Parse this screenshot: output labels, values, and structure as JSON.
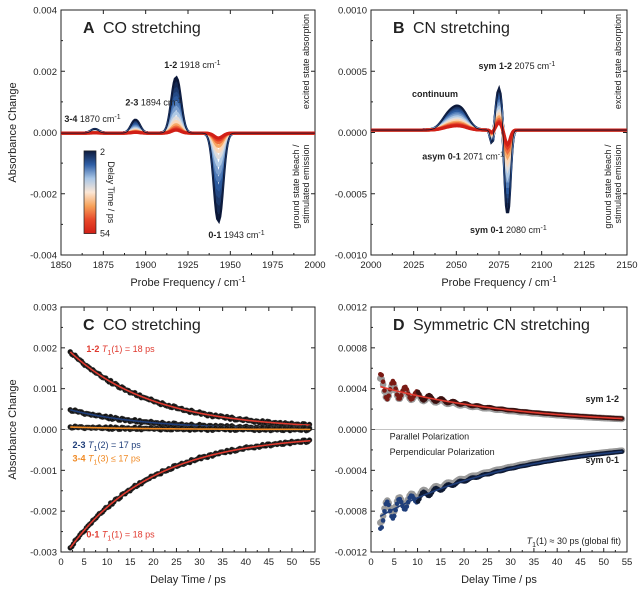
{
  "chart_data": [
    {
      "id": "A",
      "type": "line",
      "panel_letter": "A",
      "title": "CO stretching",
      "xlabel": "Probe Frequency / cm",
      "xlabel_sup": "-1",
      "ylabel": "Absorbance Change",
      "xlim": [
        1850,
        2000
      ],
      "ylim": [
        -0.004,
        0.004
      ],
      "xticks": [
        "1850",
        "1875",
        "1900",
        "1925",
        "1950",
        "1975",
        "2000"
      ],
      "yticks": [
        "-0.004",
        "-0.002",
        "0.000",
        "0.002",
        "0.004"
      ],
      "side_top": "excited state absorption",
      "side_bottom_1": "ground state bleach /",
      "side_bottom_2": "stimulated emission",
      "colorbar": {
        "label": "Delay Time / ps",
        "min_label": "2",
        "max_label": "54"
      },
      "spectra": {
        "delays": [
          2,
          4,
          6,
          8,
          10,
          13,
          16,
          20,
          25,
          30,
          36,
          42,
          48,
          54
        ],
        "decay_ps": 18,
        "baseline_offset": -2e-05,
        "peaks": [
          {
            "center": 1918,
            "amp": 0.0018,
            "width": 2.6
          },
          {
            "center": 1894,
            "amp": 0.00042,
            "width": 2.4
          },
          {
            "center": 1870,
            "amp": 0.00012,
            "width": 2.2
          },
          {
            "center": 1943,
            "amp": -0.00285,
            "width": 2.5
          }
        ]
      },
      "annotations": [
        {
          "bold": "1-2",
          "text": "1918 cm",
          "sup": "-1"
        },
        {
          "bold": "2-3",
          "text": "1894 cm",
          "sup": "-1"
        },
        {
          "bold": "3-4",
          "text": "1870 cm",
          "sup": "-1"
        },
        {
          "bold": "0-1",
          "text": "1943 cm",
          "sup": "-1"
        }
      ]
    },
    {
      "id": "B",
      "type": "line",
      "panel_letter": "B",
      "title": "CN stretching",
      "xlabel": "Probe Frequency / cm",
      "xlabel_sup": "-1",
      "ylabel": "",
      "xlim": [
        2000,
        2150
      ],
      "ylim": [
        -0.001,
        0.001
      ],
      "xticks": [
        "2000",
        "2025",
        "2050",
        "2075",
        "2100",
        "2125",
        "2150"
      ],
      "yticks": [
        "-0.0010",
        "-0.0005",
        "0.0000",
        "0.0005",
        "0.0010"
      ],
      "side_top": "excited state absorption",
      "side_bottom_1": "ground state bleach /",
      "side_bottom_2": "stimulated emission",
      "spectra": {
        "delays": [
          2,
          4,
          6,
          8,
          10,
          13,
          16,
          20,
          25,
          30,
          36,
          42,
          48,
          54
        ],
        "decay_ps": 30,
        "baseline_offset": 2e-05,
        "peaks": [
          {
            "center": 2075,
            "amp": 0.00033,
            "width": 1.6
          },
          {
            "center": 2052,
            "amp": 0.00017,
            "width": 4.5
          },
          {
            "center": 2045,
            "amp": 9e-05,
            "width": 4.0
          },
          {
            "center": 2071,
            "amp": -0.00011,
            "width": 1.0
          },
          {
            "center": 2080,
            "amp": -0.00068,
            "width": 1.5
          }
        ]
      },
      "annotations": [
        {
          "bold": "sym 1-2",
          "text": "2075 cm",
          "sup": "-1"
        },
        {
          "bold": "continuum",
          "text": "",
          "sup": ""
        },
        {
          "bold": "asym 0-1",
          "text": "2071 cm",
          "sup": "-1"
        },
        {
          "bold": "sym 0-1",
          "text": "2080 cm",
          "sup": "-1"
        }
      ]
    },
    {
      "id": "C",
      "type": "scatter",
      "panel_letter": "C",
      "title": "CO stretching",
      "xlabel": "Delay Time / ps",
      "ylabel": "Absorbance Change",
      "xlim": [
        0,
        55
      ],
      "ylim": [
        -0.003,
        0.003
      ],
      "xticks": [
        "0",
        "5",
        "10",
        "15",
        "20",
        "25",
        "30",
        "35",
        "40",
        "45",
        "50",
        "55"
      ],
      "yticks": [
        "-0.003",
        "-0.002",
        "-0.001",
        "0.000",
        "0.001",
        "0.002",
        "0.003"
      ],
      "series": [
        {
          "name": "1-2",
          "label_math": "T",
          "label_sub": "1",
          "label_rest": "(1) = 18 ps",
          "color": "#e03a2f",
          "a0": 0.0019,
          "tau": 18,
          "offset": 0.0
        },
        {
          "name": "2-3",
          "label_math": "T",
          "label_sub": "1",
          "label_rest": "(2) = 17 ps",
          "color": "#1f3e7a",
          "a0": 0.00048,
          "tau": 17,
          "offset": 0.0
        },
        {
          "name": "3-4",
          "label_math": "T",
          "label_sub": "1",
          "label_rest": "(3) ≤ 17 ps",
          "color": "#f08a24",
          "a0": 6e-05,
          "tau": 17,
          "offset": 0.0
        },
        {
          "name": "0-1",
          "label_math": "T",
          "label_sub": "1",
          "label_rest": "(1) = 18 ps",
          "color": "#e03a2f",
          "a0": -0.0029,
          "tau": 18,
          "offset": -0.00012
        }
      ]
    },
    {
      "id": "D",
      "type": "scatter",
      "panel_letter": "D",
      "title": "Symmetric CN stretching",
      "xlabel": "Delay Time / ps",
      "ylabel": "",
      "xlim": [
        0,
        55
      ],
      "ylim": [
        -0.0012,
        0.0012
      ],
      "xticks": [
        "0",
        "5",
        "10",
        "15",
        "20",
        "25",
        "30",
        "35",
        "40",
        "45",
        "50",
        "55"
      ],
      "yticks": [
        "-0.0012",
        "-0.0008",
        "-0.0004",
        "0.0000",
        "0.0004",
        "0.0008",
        "0.0012"
      ],
      "legend": [
        {
          "label": "Parallel Polarization",
          "color": "#111111"
        },
        {
          "label": "Perpendicular Polarization",
          "color": "#8c8c8c"
        }
      ],
      "fit_note_math": "T",
      "fit_note_sub": "1",
      "fit_note_rest": "(1) ≈ 30 ps (global fit)",
      "series": [
        {
          "name": "sym 1-2",
          "color": "#e03a2f",
          "a0": 0.00042,
          "tau": 30,
          "offset": 4e-05,
          "osc": 0.00013,
          "period": 2.6,
          "damp": 7
        },
        {
          "name": "sym 0-1",
          "color": "#1f3e7a",
          "a0": -0.00085,
          "tau": 30,
          "offset": -8e-05,
          "osc": 0.00013,
          "period": 2.6,
          "damp": 7
        }
      ]
    }
  ]
}
